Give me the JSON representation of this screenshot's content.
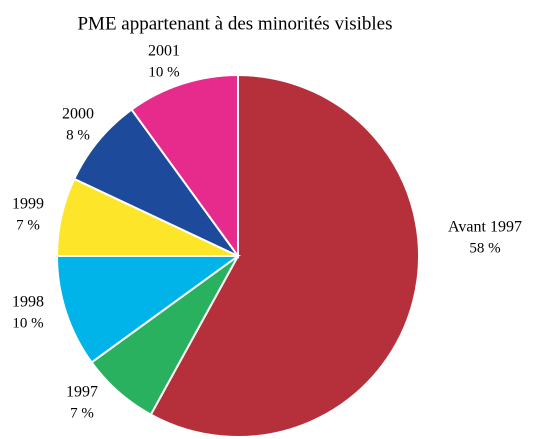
{
  "chart_data": {
    "type": "pie",
    "title": "PME appartenant à des minorités visibles",
    "categories": [
      "Avant 1997",
      "1997",
      "1998",
      "1999",
      "2000",
      "2001"
    ],
    "values": [
      58,
      7,
      10,
      7,
      8,
      10
    ],
    "value_labels": [
      "58 %",
      "7 %",
      "10 %",
      "7 %",
      "8 %",
      "10 %"
    ],
    "colors": [
      "#b5303a",
      "#2ab160",
      "#00b3e8",
      "#fde52a",
      "#1d4a9b",
      "#e62b8c"
    ]
  }
}
